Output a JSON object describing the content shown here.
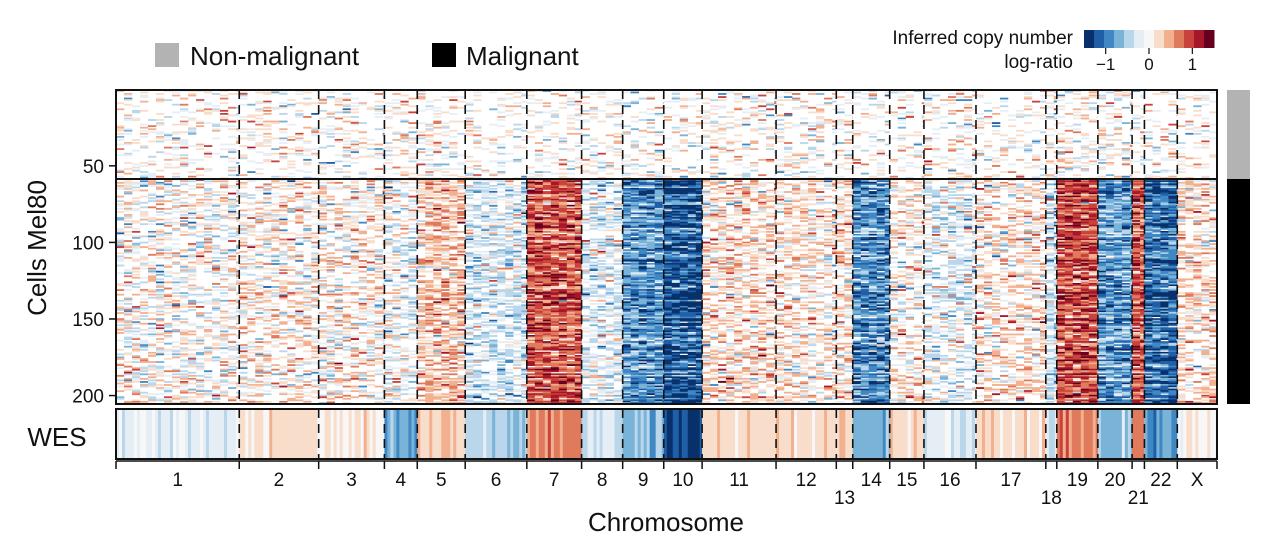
{
  "chart_data": {
    "type": "heatmap",
    "title": "",
    "ylabel": "Cells Mel80",
    "xlabel": "Chromosome",
    "legend": {
      "groups": [
        {
          "label": "Non-malignant",
          "color": "#b3b3b3"
        },
        {
          "label": "Malignant",
          "color": "#000000"
        }
      ],
      "colorbar": {
        "title_line1": "Inferred copy number",
        "title_line2": "log-ratio",
        "range": [
          -1.5,
          1.5
        ],
        "ticks": [
          -1,
          0,
          1
        ],
        "tick_labels": [
          "−1",
          "0",
          "1"
        ],
        "colors": [
          "#08306b",
          "#1f5fa8",
          "#3f88c4",
          "#7ab3d8",
          "#b9d6ea",
          "#e6eef5",
          "#f7f7f7",
          "#f9ddcb",
          "#f2b08f",
          "#e07a5c",
          "#c9423b",
          "#a8162a",
          "#67001f"
        ]
      },
      "position": "top"
    },
    "y_ticks": [
      50,
      100,
      150,
      200
    ],
    "y_range": [
      1,
      205
    ],
    "n_nonmalignant": 58,
    "n_cells": 205,
    "track_label": "WES",
    "chromosomes": [
      {
        "label": "1",
        "width": 9.0,
        "base": 0.0,
        "wes": -0.2
      },
      {
        "label": "2",
        "width": 5.8,
        "base": 0.05,
        "wes": 0.2
      },
      {
        "label": "3",
        "width": 4.8,
        "base": 0.05,
        "wes": 0.15
      },
      {
        "label": "4",
        "width": 2.4,
        "base": -0.1,
        "wes": -0.75
      },
      {
        "label": "5",
        "width": 3.5,
        "base": 0.3,
        "wes": 0.3
      },
      {
        "label": "6",
        "width": 4.5,
        "base": -0.25,
        "wes": -0.55
      },
      {
        "label": "7",
        "width": 4.0,
        "base": 0.85,
        "wes": 0.65
      },
      {
        "label": "8",
        "width": 3.0,
        "base": -0.2,
        "wes": -0.35
      },
      {
        "label": "9",
        "width": 3.0,
        "base": -0.85,
        "wes": -0.6
      },
      {
        "label": "10",
        "width": 2.8,
        "base": -1.25,
        "wes": -1.3
      },
      {
        "label": "11",
        "width": 5.4,
        "base": 0.15,
        "wes": 0.25
      },
      {
        "label": "12",
        "width": 4.4,
        "base": 0.1,
        "wes": 0.3
      },
      {
        "label": "13",
        "width": 1.2,
        "base": 0.15,
        "wes": 0.35
      },
      {
        "label": "14",
        "width": 2.7,
        "base": -0.9,
        "wes": -0.7
      },
      {
        "label": "15",
        "width": 2.5,
        "base": 0.05,
        "wes": 0.3
      },
      {
        "label": "16",
        "width": 3.8,
        "base": -0.15,
        "wes": -0.25
      },
      {
        "label": "17",
        "width": 5.1,
        "base": 0.1,
        "wes": 0.25
      },
      {
        "label": "18",
        "width": 0.8,
        "base": -0.3,
        "wes": -0.3
      },
      {
        "label": "19",
        "width": 3.0,
        "base": 0.9,
        "wes": 0.7
      },
      {
        "label": "20",
        "width": 2.5,
        "base": -0.85,
        "wes": -0.6
      },
      {
        "label": "21",
        "width": 0.9,
        "base": 0.8,
        "wes": 0.6
      },
      {
        "label": "22",
        "width": 2.4,
        "base": -1.1,
        "wes": -0.75
      },
      {
        "label": "X",
        "width": 2.9,
        "base": 0.15,
        "wes": 0.15
      }
    ]
  }
}
